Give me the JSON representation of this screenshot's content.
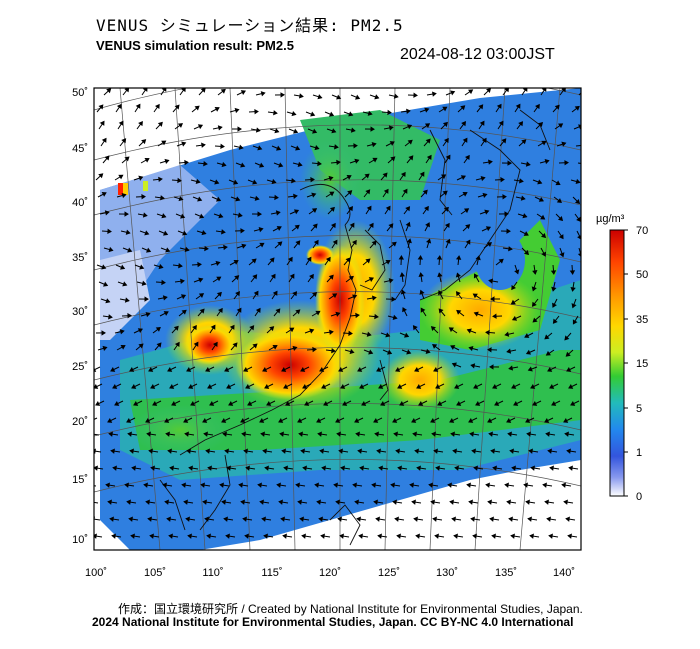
{
  "title_jp": "VENUS シミュレーション結果: PM2.5",
  "title_en": "VENUS simulation result: PM2.5",
  "timestamp": "2024-08-12 03:00JST",
  "map": {
    "lat_labels": [
      "50˚",
      "45˚",
      "40˚",
      "35˚",
      "30˚",
      "25˚",
      "20˚",
      "15˚",
      "10˚"
    ],
    "lon_labels": [
      "100˚",
      "105˚",
      "110˚",
      "115˚",
      "120˚",
      "125˚",
      "130˚",
      "135˚",
      "140˚"
    ],
    "variable": "PM2.5 concentration with wind vectors"
  },
  "colorbar": {
    "unit": "µg/m³",
    "ticks": [
      "70",
      "50",
      "35",
      "15",
      "5",
      "1",
      "0"
    ],
    "colors": [
      "#cc0000",
      "#ff4400",
      "#ff9900",
      "#ffd700",
      "#ccee22",
      "#33cc33",
      "#22bbbb",
      "#2288ee",
      "#3355dd",
      "#8899ee",
      "#ffffff"
    ]
  },
  "footer": {
    "line1": "作成：国立環境研究所 / Created by National Institute for Environmental Studies, Japan.",
    "line2": "2024 National Institute for Environmental Studies, Japan. CC BY-NC 4.0 International"
  }
}
